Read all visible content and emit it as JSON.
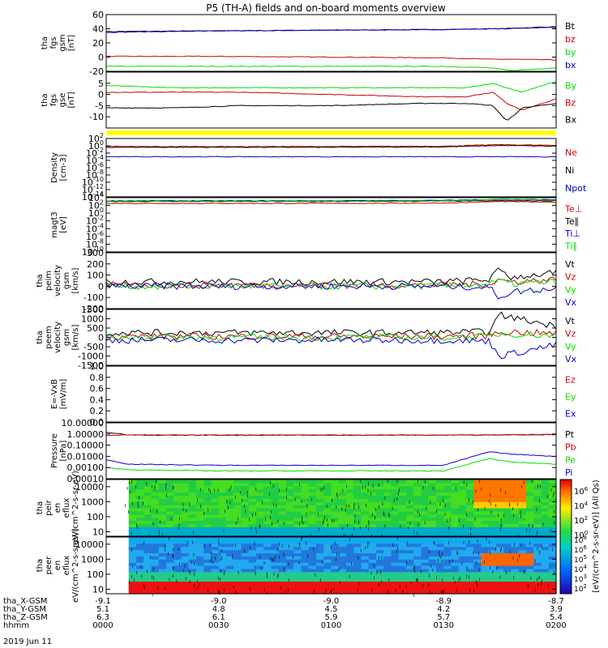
{
  "title": "P5 (TH-A) fields and on-board moments overview",
  "colors": {
    "black": "#000000",
    "red": "#cc0000",
    "green": "#00dd00",
    "blue": "#0000cc",
    "yellow": "#ffff00"
  },
  "time_axis": {
    "range": [
      "00:00",
      "02:00"
    ],
    "tick_times": [
      "0000",
      "0030",
      "0100",
      "0130",
      "0200"
    ],
    "rows": [
      {
        "label": "tha_X-GSM",
        "values": [
          "-9.1",
          "-9.0",
          "-9.0",
          "-8.9",
          "-8.7"
        ]
      },
      {
        "label": "tha_Y-GSM",
        "values": [
          "5.1",
          "4.8",
          "4.5",
          "4.2",
          "3.9"
        ]
      },
      {
        "label": "tha_Z-GSM",
        "values": [
          "6.3",
          "6.1",
          "5.9",
          "5.7",
          "5.4"
        ]
      },
      {
        "label": "hhmm",
        "values": [
          "0000",
          "0030",
          "0100",
          "0130",
          "0200"
        ]
      }
    ],
    "date_label": "2019 Jun 11"
  },
  "chart_data": [
    {
      "type": "line",
      "id": "fgs-gsm",
      "ylabel": "tha fgs gsm [nT]",
      "ylim": [
        -20,
        60
      ],
      "yticks": [
        "60",
        "40",
        "20",
        "0",
        "-20"
      ],
      "ytick_values": [
        60,
        40,
        20,
        0,
        -20
      ],
      "legend": [
        "Bt",
        "bz",
        "by",
        "bx"
      ],
      "series": [
        {
          "name": "Bt",
          "color": "black",
          "x": [
            0,
            0.5,
            1.0,
            1.5,
            1.75,
            2.0
          ],
          "values": [
            36,
            37,
            38,
            39,
            40,
            43
          ]
        },
        {
          "name": "bz",
          "color": "red",
          "x": [
            0,
            0.5,
            1.0,
            1.5,
            1.7,
            1.8,
            2.0
          ],
          "values": [
            1,
            1,
            0,
            -1,
            -3,
            -3,
            -4
          ]
        },
        {
          "name": "by",
          "color": "green",
          "x": [
            0,
            0.5,
            1.0,
            1.5,
            1.7,
            1.8,
            2.0
          ],
          "values": [
            -13,
            -13,
            -13,
            -13,
            -15,
            -19,
            -15
          ]
        },
        {
          "name": "bx",
          "color": "blue",
          "x": [
            0,
            0.5,
            1.0,
            1.5,
            1.75,
            2.0
          ],
          "values": [
            35,
            37,
            38,
            39,
            40,
            42
          ]
        }
      ]
    },
    {
      "type": "line",
      "id": "fgs-gse",
      "ylabel": "tha fgs gse [nT]",
      "ylim": [
        -15,
        10
      ],
      "yticks": [
        "5",
        "0",
        "-5",
        "-10"
      ],
      "ytick_values": [
        5,
        0,
        -5,
        -10
      ],
      "legend": [
        "By",
        "Bz",
        "Bx"
      ],
      "series": [
        {
          "name": "By",
          "color": "green",
          "x": [
            0,
            0.3,
            0.6,
            1.0,
            1.4,
            1.6,
            1.72,
            1.78,
            1.85,
            2.0
          ],
          "values": [
            4,
            3,
            3,
            3,
            3,
            3,
            5,
            3,
            1,
            6
          ]
        },
        {
          "name": "Bz",
          "color": "red",
          "x": [
            0,
            0.3,
            0.6,
            1.0,
            1.4,
            1.6,
            1.72,
            1.78,
            1.85,
            2.0
          ],
          "values": [
            1,
            1,
            1,
            0,
            -1,
            -1,
            1,
            -4,
            -7,
            -2
          ]
        },
        {
          "name": "Bx",
          "color": "black",
          "x": [
            0,
            0.3,
            0.6,
            1.0,
            1.4,
            1.6,
            1.72,
            1.78,
            1.85,
            2.0
          ],
          "values": [
            -6,
            -6,
            -5,
            -5,
            -4,
            -4,
            -5,
            -12,
            -6,
            -4
          ]
        }
      ]
    },
    {
      "type": "line",
      "id": "density",
      "ylabel": "Density [cm-3]",
      "yscale": "log",
      "ylim": [
        -14,
        2
      ],
      "yticks": [
        "10^2",
        "10^0",
        "10^-2",
        "10^-4",
        "10^-6",
        "10^-8",
        "10^-10",
        "10^-12",
        "10^-14"
      ],
      "ytick_values": [
        2,
        0,
        -2,
        -4,
        -6,
        -8,
        -10,
        -12,
        -14
      ],
      "legend": [
        "Ne",
        "Ni",
        "Npot"
      ],
      "series": [
        {
          "name": "Ne",
          "color": "red",
          "x": [
            0,
            0.5,
            1.0,
            1.5,
            1.75,
            2.0
          ],
          "values": [
            -0.2,
            -0.2,
            -0.2,
            -0.1,
            0.3,
            0.1
          ]
        },
        {
          "name": "Ni",
          "color": "black",
          "x": [
            0,
            0.5,
            1.0,
            1.5,
            1.75,
            2.0
          ],
          "values": [
            -0.4,
            -0.4,
            -0.4,
            -0.3,
            0.1,
            -0.1
          ]
        },
        {
          "name": "Npot",
          "color": "blue",
          "x": [
            0,
            0.5,
            1.0,
            1.5,
            1.75,
            2.0
          ],
          "values": [
            -3,
            -3,
            -3,
            -3,
            -3,
            -3
          ]
        }
      ]
    },
    {
      "type": "line",
      "id": "temperature",
      "ylabel": "magt3 [eV]",
      "yscale": "log",
      "ylim": [
        -10,
        4
      ],
      "yticks": [
        "10^4",
        "10^2",
        "10^0",
        "10^-2",
        "10^-4",
        "10^-6",
        "10^-8",
        "10^-10"
      ],
      "ytick_values": [
        4,
        2,
        0,
        -2,
        -4,
        -6,
        -8,
        -10
      ],
      "legend": [
        "Te⊥",
        "Te∥",
        "Ti⊥",
        "Ti∥"
      ],
      "series": [
        {
          "name": "Te⊥",
          "color": "red",
          "x": [
            0,
            0.5,
            1.0,
            1.5,
            1.75,
            2.0
          ],
          "values": [
            2.5,
            2.5,
            2.5,
            2.6,
            3.0,
            2.8
          ]
        },
        {
          "name": "Te∥",
          "color": "black",
          "x": [
            0,
            0.5,
            1.0,
            1.5,
            1.75,
            2.0
          ],
          "values": [
            3.0,
            3.0,
            3.0,
            3.1,
            3.2,
            3.2
          ]
        },
        {
          "name": "Ti⊥",
          "color": "blue",
          "x": [
            0,
            0.5,
            1.0,
            1.5,
            1.75,
            2.0
          ],
          "values": [
            3.2,
            3.2,
            3.2,
            3.3,
            3.6,
            3.5
          ]
        },
        {
          "name": "Ti∥",
          "color": "green",
          "x": [
            0,
            0.5,
            1.0,
            1.5,
            1.75,
            2.0
          ],
          "values": [
            3.1,
            3.1,
            3.1,
            3.2,
            3.5,
            3.4
          ]
        }
      ]
    },
    {
      "type": "line",
      "id": "peim-velocity",
      "ylabel": "tha peim velocity gsm [km/s]",
      "ylim": [
        -200,
        300
      ],
      "yticks": [
        "300",
        "200",
        "100",
        "0",
        "-100",
        "-200"
      ],
      "ytick_values": [
        300,
        200,
        100,
        0,
        -100,
        -200
      ],
      "legend": [
        "Vt",
        "Vz",
        "Vy",
        "Vx"
      ],
      "series": [
        {
          "name": "Vt",
          "color": "black",
          "x": [
            0,
            0.5,
            1.0,
            1.5,
            1.7,
            1.75,
            1.8,
            2.0
          ],
          "values": [
            40,
            40,
            40,
            40,
            60,
            150,
            80,
            120
          ]
        },
        {
          "name": "Vz",
          "color": "red",
          "x": [
            0,
            0.5,
            1.0,
            1.5,
            1.7,
            1.75,
            1.8,
            2.0
          ],
          "values": [
            10,
            10,
            10,
            10,
            20,
            60,
            40,
            60
          ]
        },
        {
          "name": "Vy",
          "color": "green",
          "x": [
            0,
            0.5,
            1.0,
            1.5,
            1.7,
            1.75,
            1.8,
            2.0
          ],
          "values": [
            0,
            0,
            0,
            0,
            20,
            50,
            20,
            40
          ]
        },
        {
          "name": "Vx",
          "color": "blue",
          "x": [
            0,
            0.5,
            1.0,
            1.5,
            1.7,
            1.75,
            1.8,
            2.0
          ],
          "values": [
            0,
            0,
            0,
            0,
            -10,
            -100,
            -50,
            -20
          ]
        }
      ]
    },
    {
      "type": "line",
      "id": "peem-velocity",
      "ylabel": "tha peem velocity gsm [km/s]",
      "ylim": [
        -1500,
        1500
      ],
      "yticks": [
        "1500",
        "1000",
        "500",
        "0",
        "-500",
        "-1000",
        "-1500"
      ],
      "ytick_values": [
        1500,
        1000,
        500,
        0,
        -500,
        -1000,
        -1500
      ],
      "legend": [
        "Vt",
        "Vz",
        "Vy",
        "Vx"
      ],
      "series": [
        {
          "name": "Vt",
          "color": "black",
          "x": [
            0,
            0.5,
            1.0,
            1.5,
            1.7,
            1.75,
            2.0
          ],
          "values": [
            250,
            250,
            250,
            250,
            300,
            1200,
            600
          ]
        },
        {
          "name": "Vz",
          "color": "red",
          "x": [
            0,
            0.5,
            1.0,
            1.5,
            1.7,
            1.75,
            2.0
          ],
          "values": [
            50,
            50,
            50,
            50,
            100,
            300,
            200
          ]
        },
        {
          "name": "Vy",
          "color": "green",
          "x": [
            0,
            0.5,
            1.0,
            1.5,
            1.7,
            1.75,
            2.0
          ],
          "values": [
            0,
            0,
            0,
            0,
            50,
            200,
            100
          ]
        },
        {
          "name": "Vx",
          "color": "blue",
          "x": [
            0,
            0.5,
            1.0,
            1.5,
            1.7,
            1.75,
            2.0
          ],
          "values": [
            -150,
            -150,
            -150,
            -150,
            -200,
            -1000,
            -400
          ]
        }
      ]
    },
    {
      "type": "line",
      "id": "efield",
      "ylabel": "E=-VxB [mV/m]",
      "ylim": [
        0,
        1.0
      ],
      "yticks": [
        "1.0",
        "0.8",
        "0.6",
        "0.4",
        "0.2",
        "0.0"
      ],
      "ytick_values": [
        1.0,
        0.8,
        0.6,
        0.4,
        0.2,
        0.0
      ],
      "legend": [
        "Ez",
        "Ey",
        "Ex"
      ],
      "series": []
    },
    {
      "type": "line",
      "id": "pressure",
      "ylabel": "Pressure [nPa]",
      "yscale": "log",
      "ylim": [
        -4,
        1
      ],
      "yticks": [
        "10.00000",
        "1.00000",
        "0.10000",
        "0.01000",
        "0.00100",
        "0.00010"
      ],
      "ytick_values": [
        1,
        0,
        -1,
        -2,
        -3,
        -4
      ],
      "legend": [
        "Pt",
        "Pb",
        "Pe",
        "Pi"
      ],
      "series": [
        {
          "name": "Pt",
          "color": "black",
          "x": [
            0,
            0.1,
            0.5,
            1.0,
            1.5,
            2.0
          ],
          "values": [
            0.15,
            -0.1,
            -0.1,
            -0.1,
            -0.1,
            -0.05
          ]
        },
        {
          "name": "Pb",
          "color": "red",
          "x": [
            0,
            0.5,
            1.0,
            1.5,
            2.0
          ],
          "values": [
            -0.1,
            -0.1,
            -0.1,
            -0.1,
            -0.05
          ]
        },
        {
          "name": "Pe",
          "color": "green",
          "x": [
            0,
            0.1,
            0.5,
            1.0,
            1.5,
            1.7,
            1.8,
            2.0
          ],
          "values": [
            -3.0,
            -3.2,
            -3.3,
            -3.3,
            -3.3,
            -2.2,
            -2.5,
            -2.7
          ]
        },
        {
          "name": "Pi",
          "color": "blue",
          "x": [
            0,
            0.1,
            0.5,
            1.0,
            1.5,
            1.7,
            1.8,
            2.0
          ],
          "values": [
            -2.3,
            -2.7,
            -2.8,
            -2.8,
            -2.8,
            -1.6,
            -1.8,
            -2.0
          ]
        }
      ]
    },
    {
      "type": "heatmap",
      "id": "peir-en-eflux",
      "ylabel": "tha peir en eflux eV/(cm^2-s-sr-eV)",
      "yscale": "log",
      "ylim": [
        5,
        30000
      ],
      "yticks": [
        "10000",
        "1000",
        "100",
        "10"
      ],
      "ytick_values": [
        10000,
        1000,
        100,
        10
      ]
    },
    {
      "type": "heatmap",
      "id": "peer-en-eflux",
      "ylabel": "tha peer en eflux eV/(cm^2-s-sr-eV)",
      "yscale": "log",
      "ylim": [
        5,
        30000
      ],
      "yticks": [
        "10000",
        "1000",
        "100",
        "10"
      ],
      "ytick_values": [
        10000,
        1000,
        100,
        10
      ]
    }
  ],
  "colorbar": {
    "label": "[eV/(cm^2-s-sr-eV)] (All Qs)",
    "ticks_top": [
      "10^6",
      "10^4",
      "10^2",
      "10^0"
    ],
    "ticks_bottom": [
      "10^8",
      "10^6",
      "10^5",
      "10^4",
      "10^3",
      "10^2"
    ]
  }
}
